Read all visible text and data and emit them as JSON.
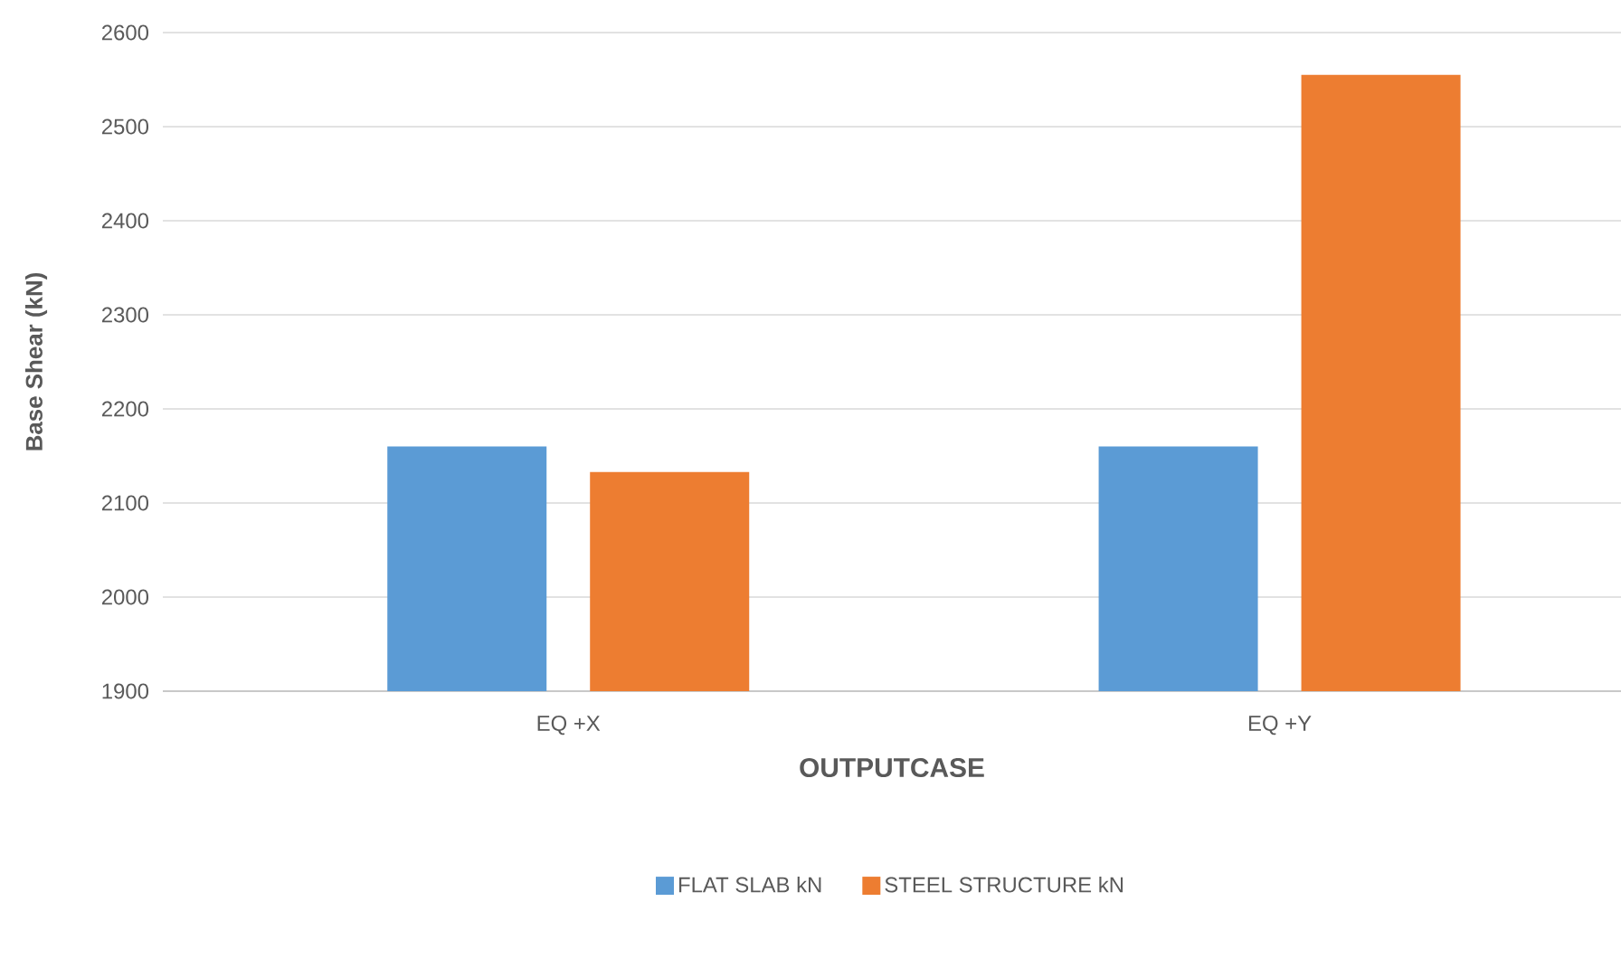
{
  "chart_data": {
    "type": "bar",
    "xlabel": "OUTPUTCASE",
    "ylabel": "Base Shear (kN)",
    "categories": [
      "EQ +X",
      "EQ +Y"
    ],
    "series": [
      {
        "name": "FLAT SLAB kN",
        "color": "#5b9bd5",
        "values": [
          2160,
          2160
        ]
      },
      {
        "name": "STEEL STRUCTURE kN",
        "color": "#ed7d31",
        "values": [
          2133,
          2555
        ]
      }
    ],
    "ylim": [
      1900,
      2600
    ],
    "yticks": [
      1900,
      2000,
      2100,
      2200,
      2300,
      2400,
      2500,
      2600
    ],
    "grid": "y",
    "legend": "bottom"
  }
}
